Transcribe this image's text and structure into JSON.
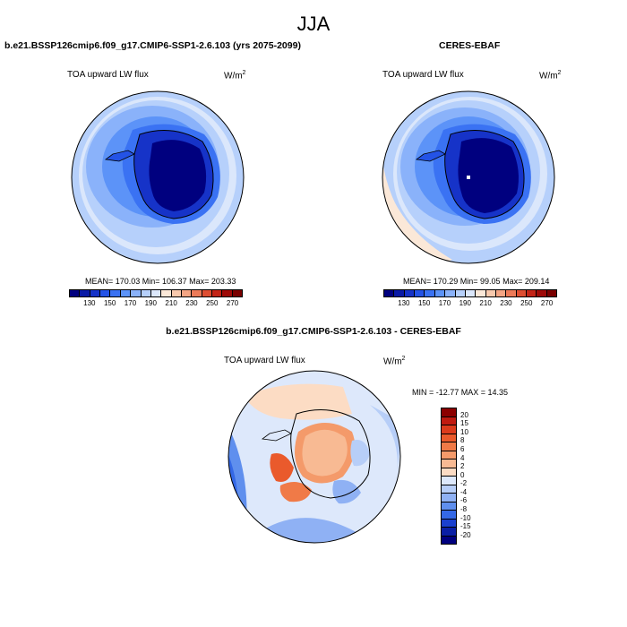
{
  "season": "JJA",
  "panels": {
    "model": {
      "title": "b.e21.BSSP126cmip6.f09_g17.CMIP6-SSP1-2.6.103 (yrs 2075-2099)",
      "variable": "TOA upward LW flux",
      "unit_base": "W/m",
      "unit_exp": "2",
      "stats": "MEAN= 170.03  Min= 106.37  Max= 203.33"
    },
    "obs": {
      "title": "CERES-EBAF",
      "variable": "TOA upward LW flux",
      "unit_base": "W/m",
      "unit_exp": "2",
      "stats": "MEAN= 170.29  Min=  99.05  Max= 209.14"
    },
    "diff": {
      "title": "b.e21.BSSP126cmip6.f09_g17.CMIP6-SSP1-2.6.103 - CERES-EBAF",
      "variable": "TOA upward LW flux",
      "unit_base": "W/m",
      "unit_exp": "2",
      "stats": "MIN = -12.77 MAX =  14.35"
    }
  },
  "colorbar_abs": {
    "labels": [
      "130",
      "150",
      "170",
      "190",
      "210",
      "230",
      "250",
      "270"
    ],
    "colors": [
      "#00007f",
      "#0a1aa6",
      "#1633c8",
      "#2453e6",
      "#3a72f3",
      "#5c93f8",
      "#8ab2fa",
      "#b6d0fb",
      "#dbe7fb",
      "#fbe8d8",
      "#f8c9ad",
      "#f4a584",
      "#ec7a58",
      "#de4e32",
      "#c32417",
      "#9e0a08",
      "#7a0000"
    ]
  },
  "colorbar_diff": {
    "labels": [
      "20",
      "15",
      "10",
      "8",
      "6",
      "4",
      "2",
      "0",
      "-2",
      "-4",
      "-6",
      "-8",
      "-10",
      "-15",
      "-20"
    ],
    "colors": [
      "#8b0000",
      "#c01a10",
      "#dc3b1c",
      "#ea5a2c",
      "#f07a47",
      "#f49a6a",
      "#f8ba93",
      "#fcdcc4",
      "#dde8fb",
      "#b7cef8",
      "#8fb1f4",
      "#5f8fee",
      "#3468e6",
      "#1a40cf",
      "#0a1fa5",
      "#00007f"
    ]
  }
}
